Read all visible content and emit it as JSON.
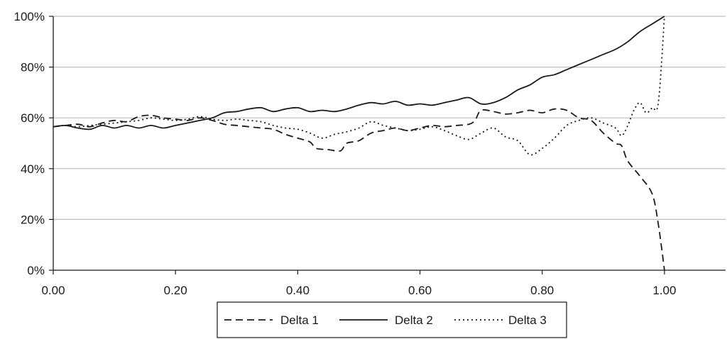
{
  "chart_data": {
    "type": "line",
    "title": "",
    "xlabel": "",
    "ylabel": "",
    "xlim": [
      0,
      1.1
    ],
    "ylim": [
      0,
      100
    ],
    "x_ticks": [
      0,
      0.2,
      0.4,
      0.6,
      0.8,
      1.0
    ],
    "x_tick_labels": [
      "0.00",
      "0.20",
      "0.40",
      "0.60",
      "0.80",
      "1.00"
    ],
    "y_ticks": [
      0,
      20,
      40,
      60,
      80,
      100
    ],
    "y_tick_labels": [
      "0%",
      "20%",
      "40%",
      "60%",
      "80%",
      "100%"
    ],
    "grid": "horizontal",
    "legend_position": "bottom",
    "series": [
      {
        "name": "Delta 1",
        "style": "dashed",
        "color": "#1a1a1a",
        "points": [
          [
            0,
            56.5
          ],
          [
            0.02,
            57
          ],
          [
            0.04,
            57.5
          ],
          [
            0.06,
            56.5
          ],
          [
            0.08,
            58
          ],
          [
            0.1,
            59
          ],
          [
            0.12,
            58.5
          ],
          [
            0.14,
            60.5
          ],
          [
            0.16,
            61
          ],
          [
            0.18,
            60
          ],
          [
            0.2,
            59.5
          ],
          [
            0.22,
            59
          ],
          [
            0.24,
            60
          ],
          [
            0.26,
            59
          ],
          [
            0.28,
            57.5
          ],
          [
            0.3,
            57
          ],
          [
            0.32,
            56.5
          ],
          [
            0.34,
            56
          ],
          [
            0.36,
            55.5
          ],
          [
            0.38,
            53.5
          ],
          [
            0.4,
            52
          ],
          [
            0.42,
            50.5
          ],
          [
            0.43,
            48
          ],
          [
            0.45,
            47.5
          ],
          [
            0.47,
            47
          ],
          [
            0.48,
            50
          ],
          [
            0.5,
            51
          ],
          [
            0.52,
            54
          ],
          [
            0.54,
            55
          ],
          [
            0.56,
            56
          ],
          [
            0.58,
            55
          ],
          [
            0.6,
            56
          ],
          [
            0.62,
            57
          ],
          [
            0.64,
            56.5
          ],
          [
            0.66,
            57
          ],
          [
            0.68,
            57.5
          ],
          [
            0.69,
            59
          ],
          [
            0.7,
            63
          ],
          [
            0.72,
            62.5
          ],
          [
            0.74,
            61.5
          ],
          [
            0.76,
            62
          ],
          [
            0.78,
            63
          ],
          [
            0.8,
            62
          ],
          [
            0.82,
            63.5
          ],
          [
            0.84,
            63
          ],
          [
            0.86,
            60
          ],
          [
            0.88,
            59
          ],
          [
            0.9,
            54
          ],
          [
            0.92,
            50
          ],
          [
            0.93,
            49
          ],
          [
            0.94,
            43
          ],
          [
            0.96,
            37
          ],
          [
            0.98,
            30
          ],
          [
            0.99,
            18
          ],
          [
            1.0,
            0
          ]
        ]
      },
      {
        "name": "Delta 2",
        "style": "solid",
        "color": "#1a1a1a",
        "points": [
          [
            0,
            56.5
          ],
          [
            0.02,
            57
          ],
          [
            0.04,
            56
          ],
          [
            0.06,
            55.5
          ],
          [
            0.08,
            57
          ],
          [
            0.1,
            56
          ],
          [
            0.12,
            57
          ],
          [
            0.14,
            56
          ],
          [
            0.16,
            57
          ],
          [
            0.18,
            56
          ],
          [
            0.2,
            57
          ],
          [
            0.22,
            58
          ],
          [
            0.24,
            59
          ],
          [
            0.26,
            60
          ],
          [
            0.28,
            62
          ],
          [
            0.3,
            62.5
          ],
          [
            0.32,
            63.5
          ],
          [
            0.34,
            64
          ],
          [
            0.36,
            62.5
          ],
          [
            0.38,
            63.5
          ],
          [
            0.4,
            64
          ],
          [
            0.42,
            62.5
          ],
          [
            0.44,
            63
          ],
          [
            0.46,
            62.5
          ],
          [
            0.48,
            63.5
          ],
          [
            0.5,
            65
          ],
          [
            0.52,
            66
          ],
          [
            0.54,
            65.5
          ],
          [
            0.56,
            66.5
          ],
          [
            0.58,
            65
          ],
          [
            0.6,
            65.5
          ],
          [
            0.62,
            65
          ],
          [
            0.64,
            66
          ],
          [
            0.66,
            67
          ],
          [
            0.68,
            68
          ],
          [
            0.7,
            65.5
          ],
          [
            0.72,
            66
          ],
          [
            0.74,
            68
          ],
          [
            0.76,
            71
          ],
          [
            0.78,
            73
          ],
          [
            0.8,
            76
          ],
          [
            0.82,
            77
          ],
          [
            0.84,
            79
          ],
          [
            0.86,
            81
          ],
          [
            0.88,
            83
          ],
          [
            0.9,
            85
          ],
          [
            0.92,
            87
          ],
          [
            0.94,
            90
          ],
          [
            0.96,
            94
          ],
          [
            0.98,
            97
          ],
          [
            1.0,
            100
          ]
        ]
      },
      {
        "name": "Delta 3",
        "style": "dotted",
        "color": "#1a1a1a",
        "points": [
          [
            0,
            56.5
          ],
          [
            0.02,
            57
          ],
          [
            0.04,
            56.5
          ],
          [
            0.06,
            57
          ],
          [
            0.08,
            57.5
          ],
          [
            0.1,
            58
          ],
          [
            0.12,
            58.5
          ],
          [
            0.14,
            59
          ],
          [
            0.16,
            60
          ],
          [
            0.18,
            59.5
          ],
          [
            0.2,
            59
          ],
          [
            0.22,
            59.5
          ],
          [
            0.24,
            60.5
          ],
          [
            0.26,
            59.5
          ],
          [
            0.28,
            59
          ],
          [
            0.3,
            59.5
          ],
          [
            0.32,
            59
          ],
          [
            0.34,
            58.5
          ],
          [
            0.36,
            57
          ],
          [
            0.38,
            56
          ],
          [
            0.4,
            55.5
          ],
          [
            0.42,
            54
          ],
          [
            0.44,
            52
          ],
          [
            0.46,
            53.5
          ],
          [
            0.48,
            54.5
          ],
          [
            0.5,
            56
          ],
          [
            0.52,
            58.5
          ],
          [
            0.54,
            57
          ],
          [
            0.56,
            56
          ],
          [
            0.58,
            55
          ],
          [
            0.6,
            55.5
          ],
          [
            0.62,
            56.5
          ],
          [
            0.64,
            55
          ],
          [
            0.66,
            53
          ],
          [
            0.68,
            51.5
          ],
          [
            0.7,
            54
          ],
          [
            0.72,
            56
          ],
          [
            0.74,
            52.5
          ],
          [
            0.76,
            51
          ],
          [
            0.78,
            45.5
          ],
          [
            0.8,
            48
          ],
          [
            0.82,
            52
          ],
          [
            0.84,
            57
          ],
          [
            0.86,
            59
          ],
          [
            0.88,
            60
          ],
          [
            0.9,
            58
          ],
          [
            0.92,
            56
          ],
          [
            0.93,
            53
          ],
          [
            0.94,
            57
          ],
          [
            0.95,
            63
          ],
          [
            0.96,
            66
          ],
          [
            0.97,
            62
          ],
          [
            0.98,
            64
          ],
          [
            0.99,
            66
          ],
          [
            1.0,
            100
          ]
        ]
      }
    ]
  }
}
